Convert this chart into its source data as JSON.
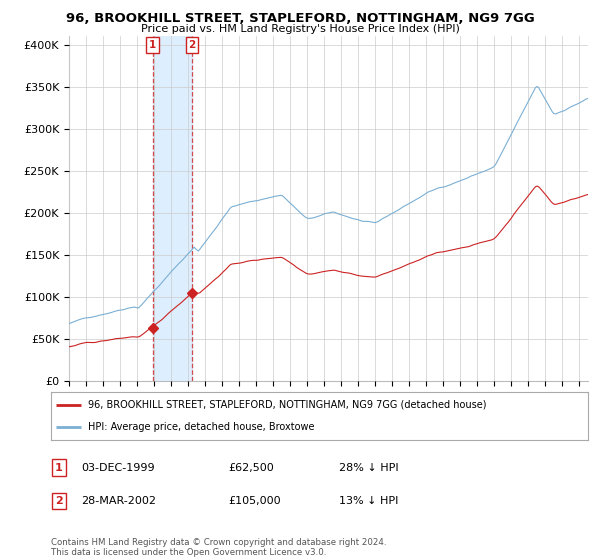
{
  "title": "96, BROOKHILL STREET, STAPLEFORD, NOTTINGHAM, NG9 7GG",
  "subtitle": "Price paid vs. HM Land Registry's House Price Index (HPI)",
  "legend_line1": "96, BROOKHILL STREET, STAPLEFORD, NOTTINGHAM, NG9 7GG (detached house)",
  "legend_line2": "HPI: Average price, detached house, Broxtowe",
  "sale1_date_str": "03-DEC-1999",
  "sale1_price": 62500,
  "sale1_year": 1999.917,
  "sale1_info": "03-DEC-1999",
  "sale1_price_str": "£62,500",
  "sale1_hpi_str": "28% ↓ HPI",
  "sale2_date_str": "28-MAR-2002",
  "sale2_price": 105000,
  "sale2_year": 2002.24,
  "sale2_info": "28-MAR-2002",
  "sale2_price_str": "£105,000",
  "sale2_hpi_str": "13% ↓ HPI",
  "hpi_color": "#7bafd4",
  "price_color": "#cc2222",
  "sale_color": "#cc2222",
  "shade_color": "#ddeeff",
  "background_color": "#ffffff",
  "grid_color": "#cccccc",
  "footer": "Contains HM Land Registry data © Crown copyright and database right 2024.\nThis data is licensed under the Open Government Licence v3.0.",
  "ylim": [
    0,
    410000
  ],
  "yticks": [
    0,
    50000,
    100000,
    150000,
    200000,
    250000,
    300000,
    350000,
    400000
  ],
  "ytick_labels": [
    "£0",
    "£50K",
    "£100K",
    "£150K",
    "£200K",
    "£250K",
    "£300K",
    "£350K",
    "£400K"
  ],
  "xmin": 1995.0,
  "xmax": 2025.5
}
